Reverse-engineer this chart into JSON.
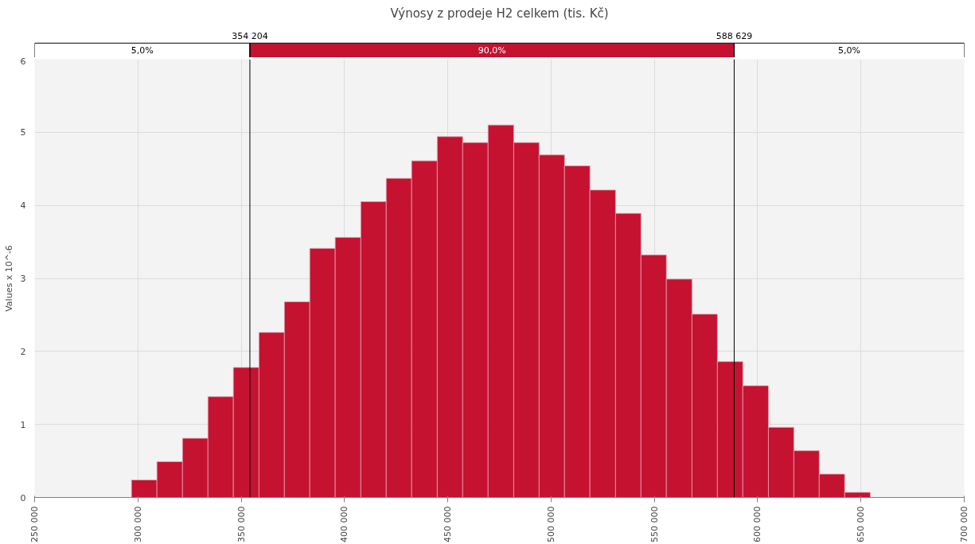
{
  "chart_data": {
    "type": "histogram",
    "title": "Výnosy z prodeje H2 celkem (tis. Kč)",
    "ylabel": "Values x 10^-6",
    "bins": [
      296900,
      309200,
      321600,
      333900,
      346200,
      358600,
      370900,
      383200,
      395500,
      407900,
      420200,
      432500,
      444900,
      457200,
      469500,
      481900,
      494200,
      506500,
      518800,
      531200,
      543500,
      555800,
      568200,
      580500,
      592800,
      605200,
      617500,
      629800,
      642100,
      654500
    ],
    "values": [
      0.24,
      0.49,
      0.81,
      1.38,
      1.78,
      2.26,
      2.68,
      3.41,
      3.56,
      4.05,
      4.37,
      4.61,
      4.94,
      4.86,
      5.1,
      4.86,
      4.69,
      4.54,
      4.21,
      3.89,
      3.32,
      2.99,
      2.51,
      1.86,
      1.53,
      0.96,
      0.64,
      0.32,
      0.07
    ],
    "color": "#c41230",
    "xlim": [
      250000,
      700000
    ],
    "xticks": [
      {
        "value": 250000,
        "label": "250 000"
      },
      {
        "value": 300000,
        "label": "300 000"
      },
      {
        "value": 350000,
        "label": "350 000"
      },
      {
        "value": 400000,
        "label": "400 000"
      },
      {
        "value": 450000,
        "label": "450 000"
      },
      {
        "value": 500000,
        "label": "500 000"
      },
      {
        "value": 550000,
        "label": "550 000"
      },
      {
        "value": 600000,
        "label": "600 000"
      },
      {
        "value": 650000,
        "label": "650 000"
      },
      {
        "value": 700000,
        "label": "700 000"
      }
    ],
    "ylim": [
      0,
      6
    ],
    "yticks": [
      0,
      1,
      2,
      3,
      4,
      5,
      6
    ],
    "grid": true,
    "ref_lines": [
      {
        "axis": "x",
        "value": 354204,
        "label": "354 204",
        "color": "#000000"
      },
      {
        "axis": "x",
        "value": 588629,
        "label": "588 629",
        "color": "#000000"
      }
    ],
    "annotations": [
      "5,0%",
      "90,0%",
      "5,0%"
    ]
  }
}
